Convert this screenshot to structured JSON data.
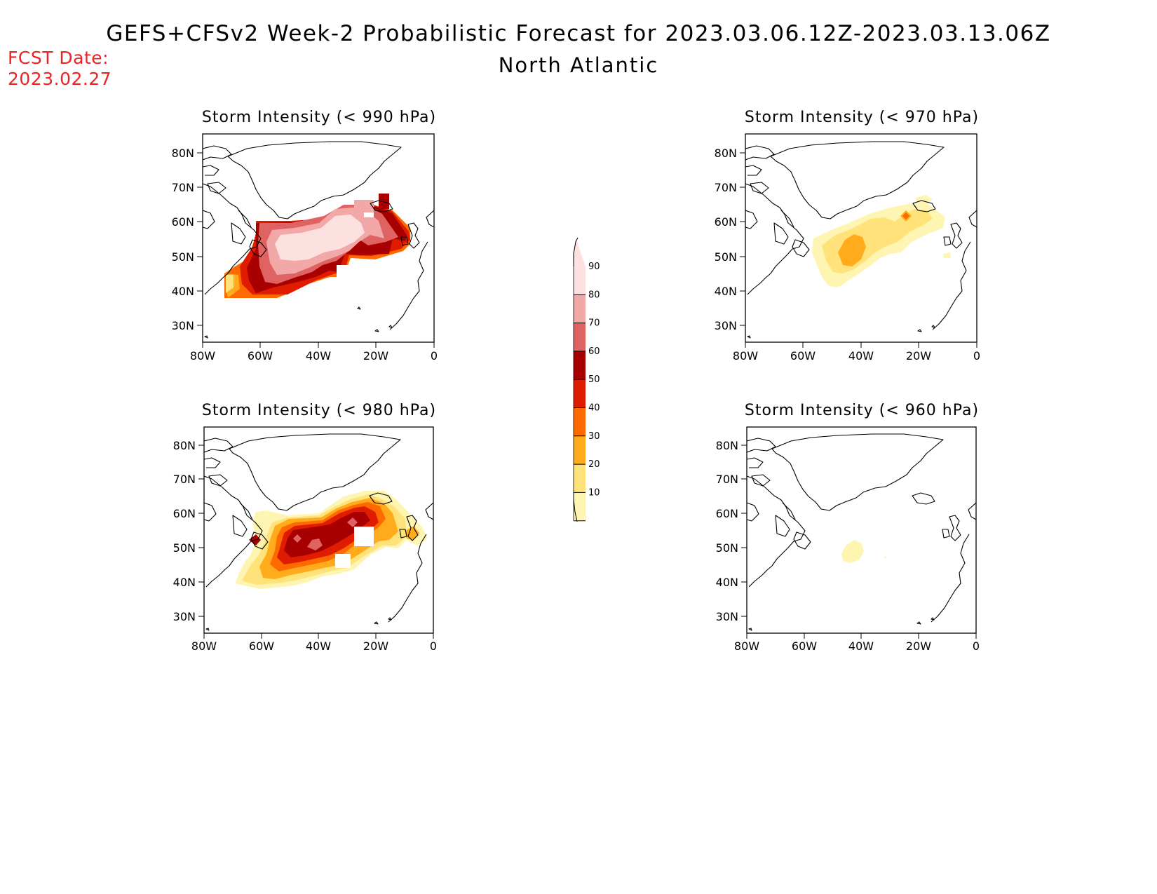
{
  "title": "GEFS+CFSv2 Week-2 Probabilistic Forecast for 2023.03.06.12Z-2023.03.13.06Z",
  "subtitle": "North Atlantic",
  "fcst_date": {
    "label": "FCST Date:",
    "value": "2023.02.27"
  },
  "axes": {
    "lat_labels": [
      "80N",
      "70N",
      "60N",
      "50N",
      "40N",
      "30N"
    ],
    "lon_labels": [
      "80W",
      "60W",
      "40W",
      "20W",
      "0"
    ]
  },
  "colorbar": {
    "levels": [
      "10",
      "20",
      "30",
      "40",
      "50",
      "60",
      "70",
      "80",
      "90"
    ],
    "colors": [
      "#fff5b3",
      "#ffe27a",
      "#ffab1c",
      "#ff6a00",
      "#e01c00",
      "#a80000",
      "#e06363",
      "#f3a8a8",
      "#fde0e0"
    ]
  },
  "panels": [
    {
      "title": "Storm Intensity (< 990 hPa)"
    },
    {
      "title": "Storm Intensity (< 970 hPa)"
    },
    {
      "title": "Storm Intensity (< 980 hPa)"
    },
    {
      "title": "Storm Intensity (< 960 hPa)"
    }
  ]
}
